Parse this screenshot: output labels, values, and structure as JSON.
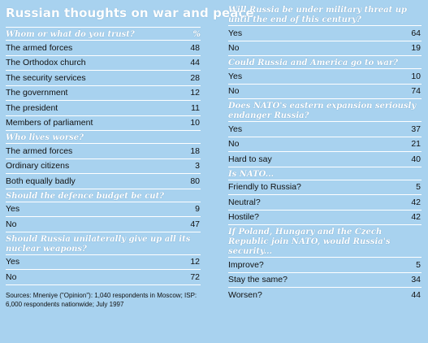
{
  "title": "Russian thoughts on war and peace",
  "left": {
    "sections": [
      {
        "question": "Whom or what do you trust?",
        "unit": "%",
        "rows": [
          {
            "label": "The armed forces",
            "value": "48"
          },
          {
            "label": "The Orthodox church",
            "value": "44"
          },
          {
            "label": "The security services",
            "value": "28"
          },
          {
            "label": "The government",
            "value": "12"
          },
          {
            "label": "The president",
            "value": "11"
          },
          {
            "label": "Members of parliament",
            "value": "10"
          }
        ]
      },
      {
        "question": "Who lives worse?",
        "unit": "",
        "rows": [
          {
            "label": "The armed forces",
            "value": "18"
          },
          {
            "label": "Ordinary citizens",
            "value": "3"
          },
          {
            "label": "Both equally badly",
            "value": "80"
          }
        ]
      },
      {
        "question": "Should the defence budget be cut?",
        "unit": "",
        "rows": [
          {
            "label": "Yes",
            "value": "9"
          },
          {
            "label": "No",
            "value": "47"
          }
        ]
      },
      {
        "question": "Should Russia unilaterally give up all its nuclear weapons?",
        "unit": "",
        "rows": [
          {
            "label": "Yes",
            "value": "12"
          },
          {
            "label": "No",
            "value": "72"
          }
        ]
      }
    ],
    "source": "Sources: Mneniye (\"Opinion\"): 1,040 respondents in Moscow; ISP: 6,000 respondents nationwide; July 1997"
  },
  "right": {
    "sections": [
      {
        "question": "Will Russia be under military threat up until the end of this century?",
        "rows": [
          {
            "label": "Yes",
            "value": "64"
          },
          {
            "label": "No",
            "value": "19"
          }
        ]
      },
      {
        "question": "Could Russia and America go to war?",
        "rows": [
          {
            "label": "Yes",
            "value": "10"
          },
          {
            "label": "No",
            "value": "74"
          }
        ]
      },
      {
        "question": "Does NATO's eastern expansion seriously endanger Russia?",
        "rows": [
          {
            "label": "Yes",
            "value": "37"
          },
          {
            "label": "No",
            "value": "21"
          },
          {
            "label": "Hard to say",
            "value": "40"
          }
        ]
      },
      {
        "question": "Is NATO...",
        "rows": [
          {
            "label": "Friendly to Russia?",
            "value": "5"
          },
          {
            "label": "Neutral?",
            "value": "42"
          },
          {
            "label": "Hostile?",
            "value": "42"
          }
        ]
      },
      {
        "question": "If Poland, Hungary and the Czech Republic join NATO, would Russia's security...",
        "rows": [
          {
            "label": "Improve?",
            "value": "5"
          },
          {
            "label": "Stay the same?",
            "value": "34"
          },
          {
            "label": "Worsen?",
            "value": "44"
          }
        ]
      }
    ]
  }
}
